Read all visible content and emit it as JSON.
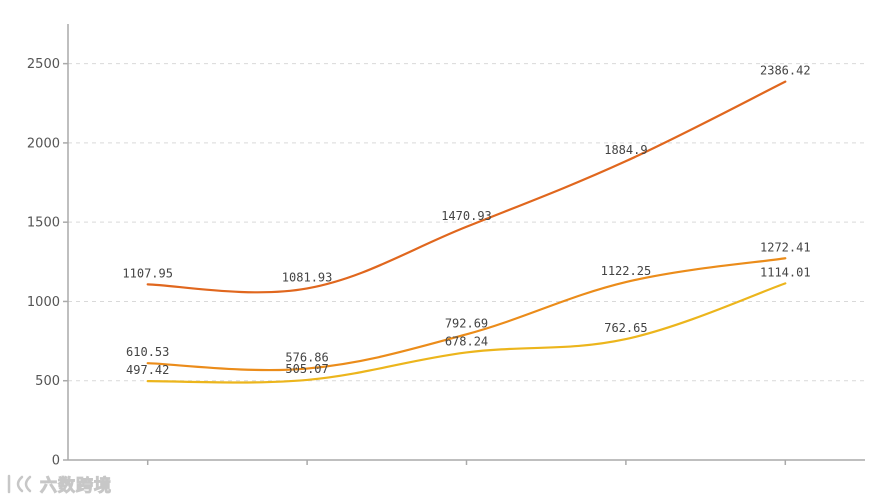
{
  "chart_data": {
    "type": "line",
    "title": "",
    "xlabel": "",
    "ylabel": "",
    "ylim": [
      0,
      2750
    ],
    "yticks": [
      0,
      500,
      1000,
      1500,
      2000,
      2500
    ],
    "grid": true,
    "x_count": 5,
    "series": [
      {
        "color": "#e0671e",
        "values": [
          1107.95,
          1081.93,
          1470.93,
          1884.9,
          2386.42
        ],
        "labels": [
          "1107.95",
          "1081.93",
          "1470.93",
          "1884.9",
          "2386.42"
        ]
      },
      {
        "color": "#eb8c1a",
        "values": [
          610.53,
          576.86,
          792.69,
          1122.25,
          1272.41
        ],
        "labels": [
          "610.53",
          "576.86",
          "792.69",
          "1122.25",
          "1272.41"
        ]
      },
      {
        "color": "#ecb51c",
        "values": [
          497.42,
          505.07,
          678.24,
          762.65,
          1114.01
        ],
        "labels": [
          "497.42",
          "505.07",
          "678.24",
          "762.65",
          "1114.01"
        ]
      }
    ]
  },
  "watermark": {
    "text": "六数跨境"
  }
}
